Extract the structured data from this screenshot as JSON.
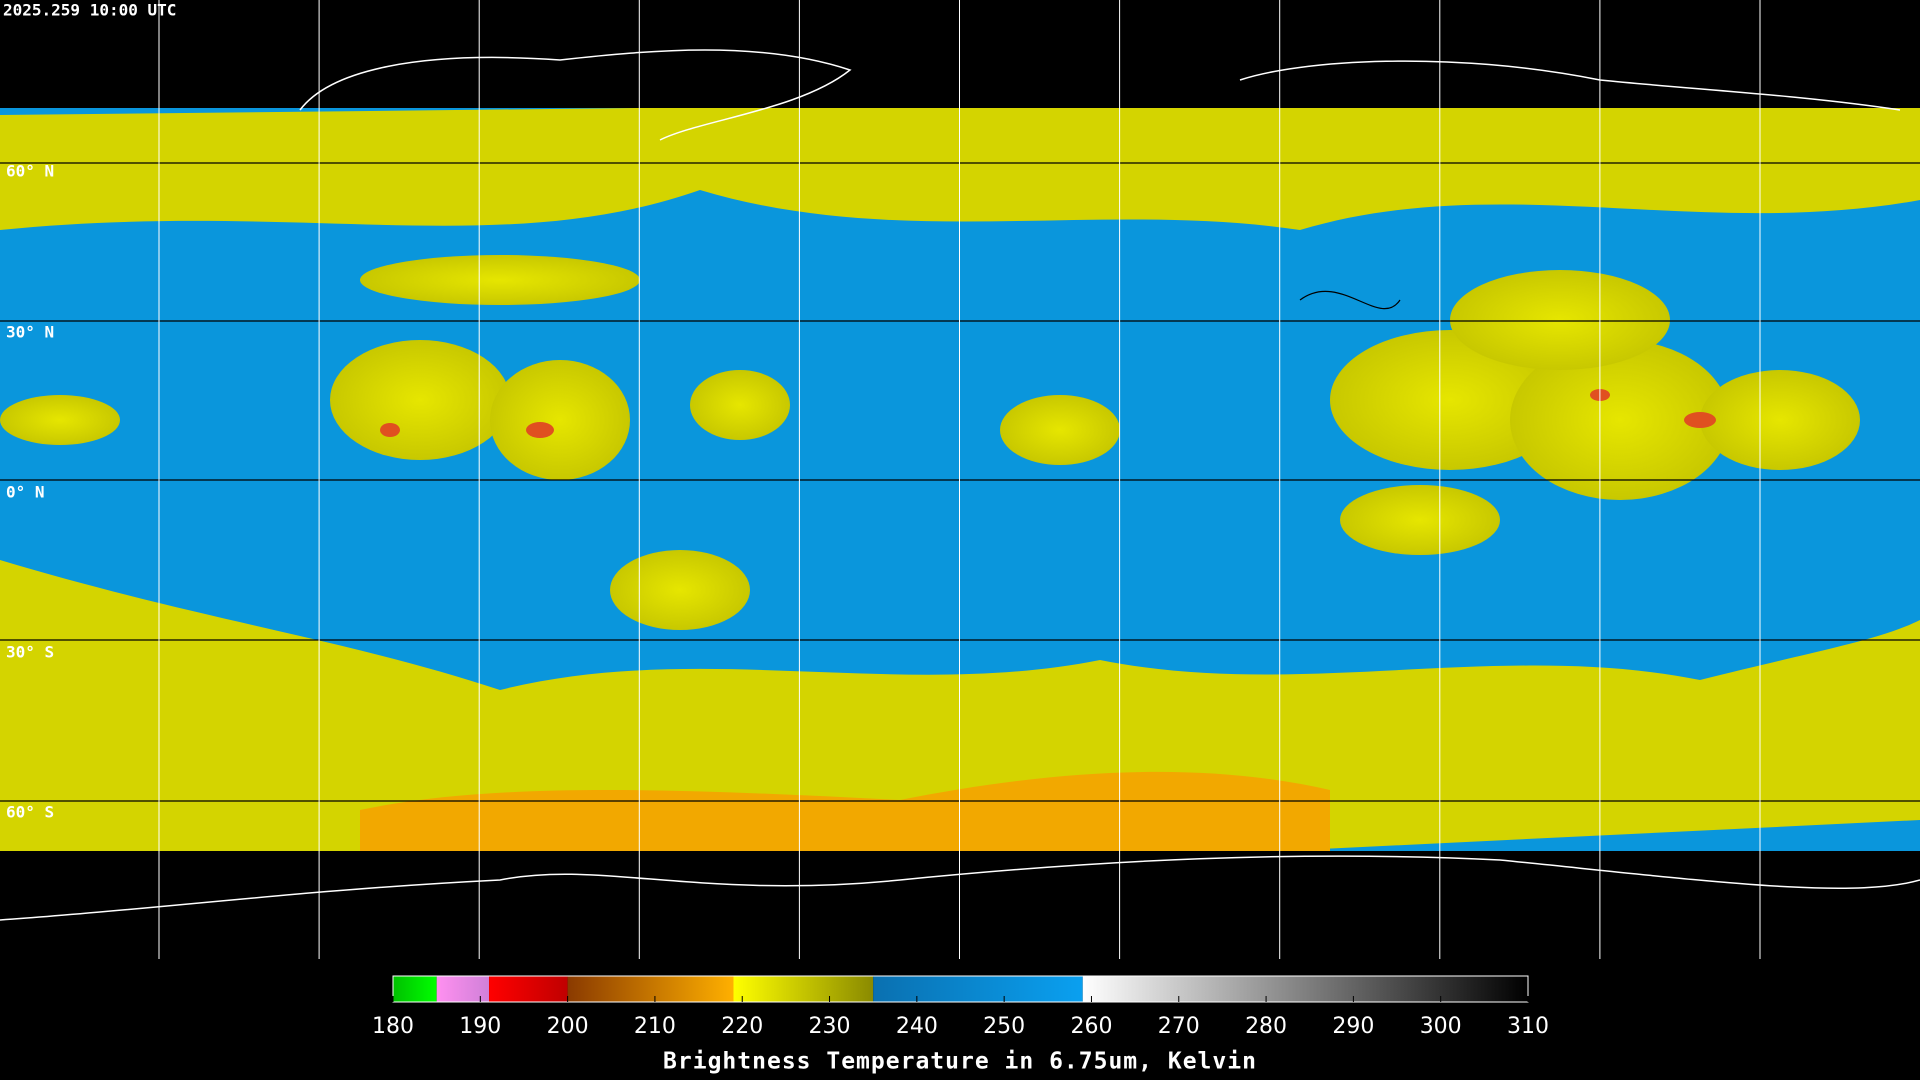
{
  "timestamp": "2025.259 10:00 UTC",
  "lat_labels": [
    "60° N",
    "30° N",
    "0° N",
    "30° S",
    "60° S"
  ],
  "colorbar": {
    "label": "Brightness Temperature in 6.75um, Kelvin",
    "range": [
      180,
      310
    ],
    "ticks": [
      180,
      190,
      200,
      210,
      220,
      230,
      240,
      250,
      260,
      270,
      280,
      290,
      300,
      310
    ],
    "segments": [
      {
        "from": 180,
        "to": 185,
        "colors": [
          "#00c000",
          "#00ff00"
        ]
      },
      {
        "from": 185,
        "to": 191,
        "colors": [
          "#ff90f0",
          "#d080d8"
        ]
      },
      {
        "from": 191,
        "to": 200,
        "colors": [
          "#ff0000",
          "#c00000"
        ]
      },
      {
        "from": 200,
        "to": 219,
        "colors": [
          "#8a3a00",
          "#ffb000"
        ]
      },
      {
        "from": 219,
        "to": 235,
        "colors": [
          "#ffff00",
          "#8a8a00"
        ]
      },
      {
        "from": 235,
        "to": 259,
        "colors": [
          "#0a70b0",
          "#0aa0f0"
        ]
      },
      {
        "from": 259,
        "to": 310,
        "colors": [
          "#ffffff",
          "#000000"
        ]
      }
    ]
  }
}
